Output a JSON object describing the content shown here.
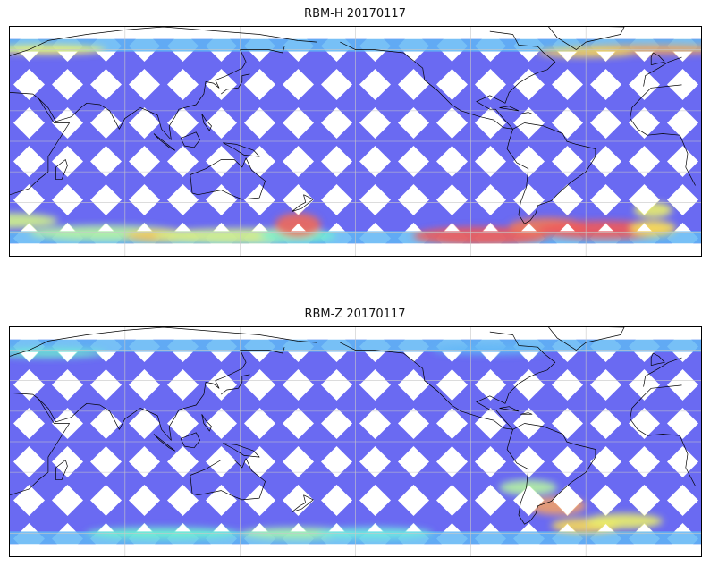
{
  "figure": {
    "panels": [
      {
        "title": "RBM-H 20170117",
        "colormap": "jet",
        "swath_color": "#6a6af2",
        "hotspots": [
          {
            "lon": -95,
            "lat": -62,
            "rx": 35,
            "ry": 6,
            "color": "#ef5a5a"
          },
          {
            "lon": -60,
            "lat": -56,
            "rx": 20,
            "ry": 6,
            "color": "#f07a5a"
          },
          {
            "lon": -30,
            "lat": -58,
            "rx": 35,
            "ry": 6,
            "color": "#ef5a5a"
          },
          {
            "lon": -5,
            "lat": -57,
            "rx": 12,
            "ry": 5,
            "color": "#f6e35a"
          },
          {
            "lon": -5,
            "lat": -45,
            "rx": 10,
            "ry": 5,
            "color": "#eaf06a"
          },
          {
            "lon": 20,
            "lat": -52,
            "rx": 25,
            "ry": 5,
            "color": "#cff28a"
          },
          {
            "lon": 70,
            "lat": -60,
            "rx": 40,
            "ry": 5,
            "color": "#b6f3a2"
          },
          {
            "lon": 100,
            "lat": -62,
            "rx": 20,
            "ry": 4,
            "color": "#f4c35a"
          },
          {
            "lon": 140,
            "lat": -62,
            "rx": 45,
            "ry": 5,
            "color": "#d6f089"
          },
          {
            "lon": 170,
            "lat": -62,
            "rx": 20,
            "ry": 4,
            "color": "#6ff0d0"
          },
          {
            "lon": -5,
            "lat": 60,
            "rx": 45,
            "ry": 3,
            "color": "#f4a45a"
          },
          {
            "lon": -40,
            "lat": 58,
            "rx": 25,
            "ry": 3,
            "color": "#f6d85a"
          },
          {
            "lon": 40,
            "lat": 60,
            "rx": 30,
            "ry": 3,
            "color": "#f6f46a"
          },
          {
            "lon": 170,
            "lat": -55,
            "rx": 12,
            "ry": 8,
            "color": "#ef6a5a"
          }
        ]
      },
      {
        "title": "RBM-Z 20170117",
        "colormap": "jet",
        "swath_color": "#6a6af2",
        "hotspots": [
          {
            "lon": -55,
            "lat": -42,
            "rx": 15,
            "ry": 6,
            "color": "#f0a06a"
          },
          {
            "lon": -40,
            "lat": -55,
            "rx": 18,
            "ry": 5,
            "color": "#f6d85a"
          },
          {
            "lon": -20,
            "lat": -52,
            "rx": 20,
            "ry": 5,
            "color": "#eaf06a"
          },
          {
            "lon": -70,
            "lat": -30,
            "rx": 15,
            "ry": 5,
            "color": "#b5f3a2"
          },
          {
            "lon": 40,
            "lat": 58,
            "rx": 30,
            "ry": 3,
            "color": "#6ff0d0"
          },
          {
            "lon": 100,
            "lat": -60,
            "rx": 40,
            "ry": 4,
            "color": "#6ff0d0"
          },
          {
            "lon": 170,
            "lat": -60,
            "rx": 30,
            "ry": 4,
            "color": "#a6f3b0"
          },
          {
            "lon": -150,
            "lat": -60,
            "rx": 30,
            "ry": 4,
            "color": "#70e8e0"
          },
          {
            "lon": -90,
            "lat": 60,
            "rx": 30,
            "ry": 3,
            "color": "#5fb5f5"
          }
        ]
      }
    ],
    "map_extent": {
      "lon_min": 20,
      "lon_max": 380,
      "lat_min": -75,
      "lat_max": 75
    },
    "swath_lat_range": [
      -67,
      67
    ],
    "grid_lon_step": 60,
    "grid_lat_step": 20,
    "grid": true,
    "coastline_color": "#000000"
  }
}
